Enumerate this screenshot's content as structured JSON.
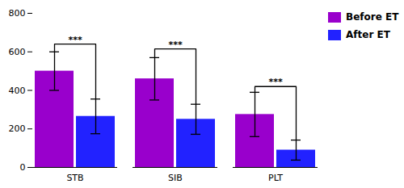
{
  "chart_data": {
    "type": "bar",
    "categories": [
      "STB",
      "SIB",
      "PLT"
    ],
    "series": [
      {
        "name": "Before ET",
        "color": "#9900CC",
        "values": [
          500,
          460,
          275
        ],
        "errors": [
          100,
          110,
          115
        ]
      },
      {
        "name": "After ET",
        "color": "#2222FF",
        "values": [
          265,
          250,
          90
        ],
        "errors": [
          90,
          78,
          52
        ]
      }
    ],
    "ylim": [
      0,
      800
    ],
    "yticks": [
      0,
      200,
      400,
      600,
      800
    ],
    "legend": "upper right",
    "annotations": [
      {
        "text": "***",
        "category": "STB",
        "y": 640
      },
      {
        "text": "***",
        "category": "SIB",
        "y": 615
      },
      {
        "text": "***",
        "category": "PLT",
        "y": 420
      }
    ]
  }
}
